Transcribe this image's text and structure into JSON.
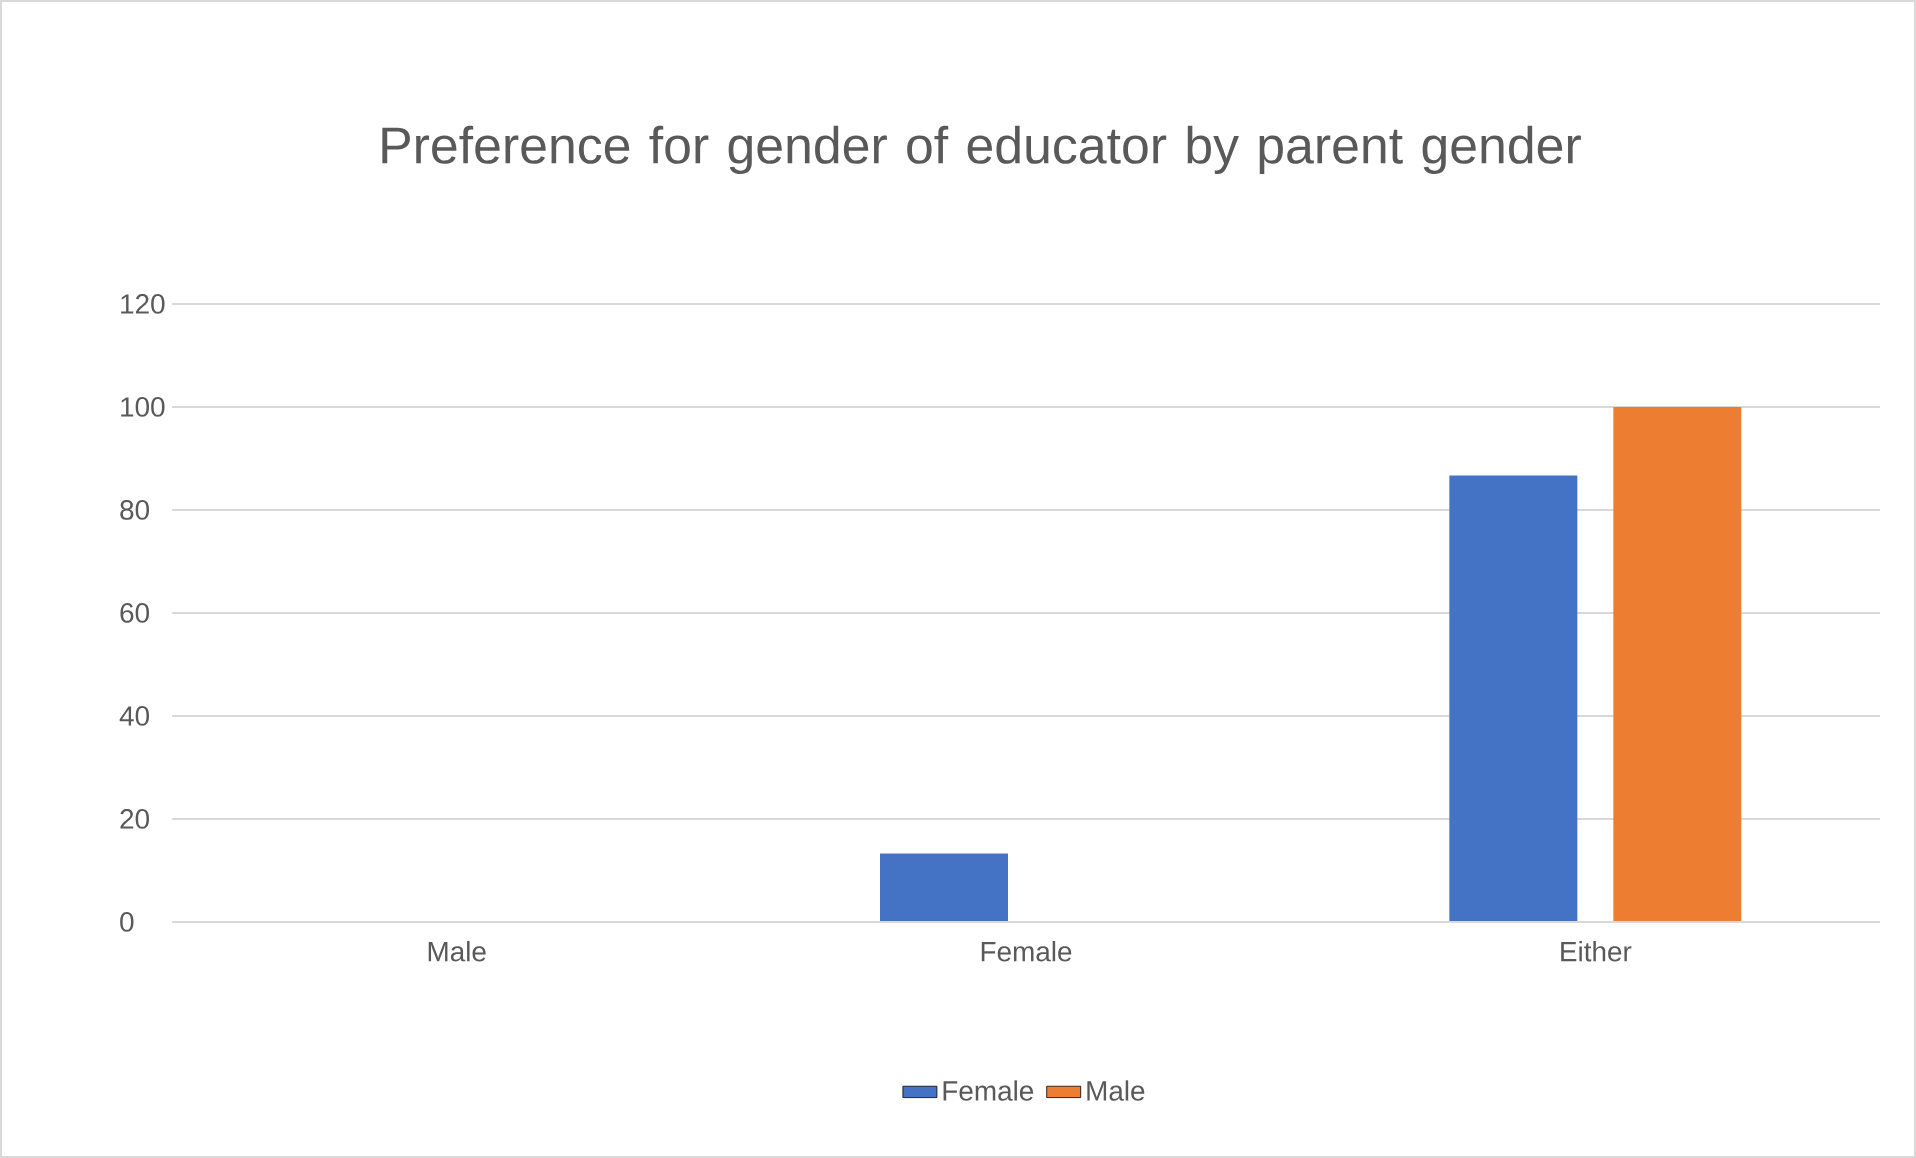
{
  "chart_data": {
    "type": "bar",
    "title": "Preference for gender of educator by parent gender",
    "categories": [
      "Male",
      "Female",
      "Either"
    ],
    "series": [
      {
        "name": "Female",
        "color": "#4472c4",
        "values": [
          0,
          13.3,
          86.7
        ]
      },
      {
        "name": "Male",
        "color": "#ed7d31",
        "values": [
          0,
          0,
          100
        ]
      }
    ],
    "ylim": [
      0,
      120
    ],
    "yticks": [
      0,
      20,
      40,
      60,
      80,
      100,
      120
    ],
    "grid": "y",
    "legend": "bottom"
  }
}
